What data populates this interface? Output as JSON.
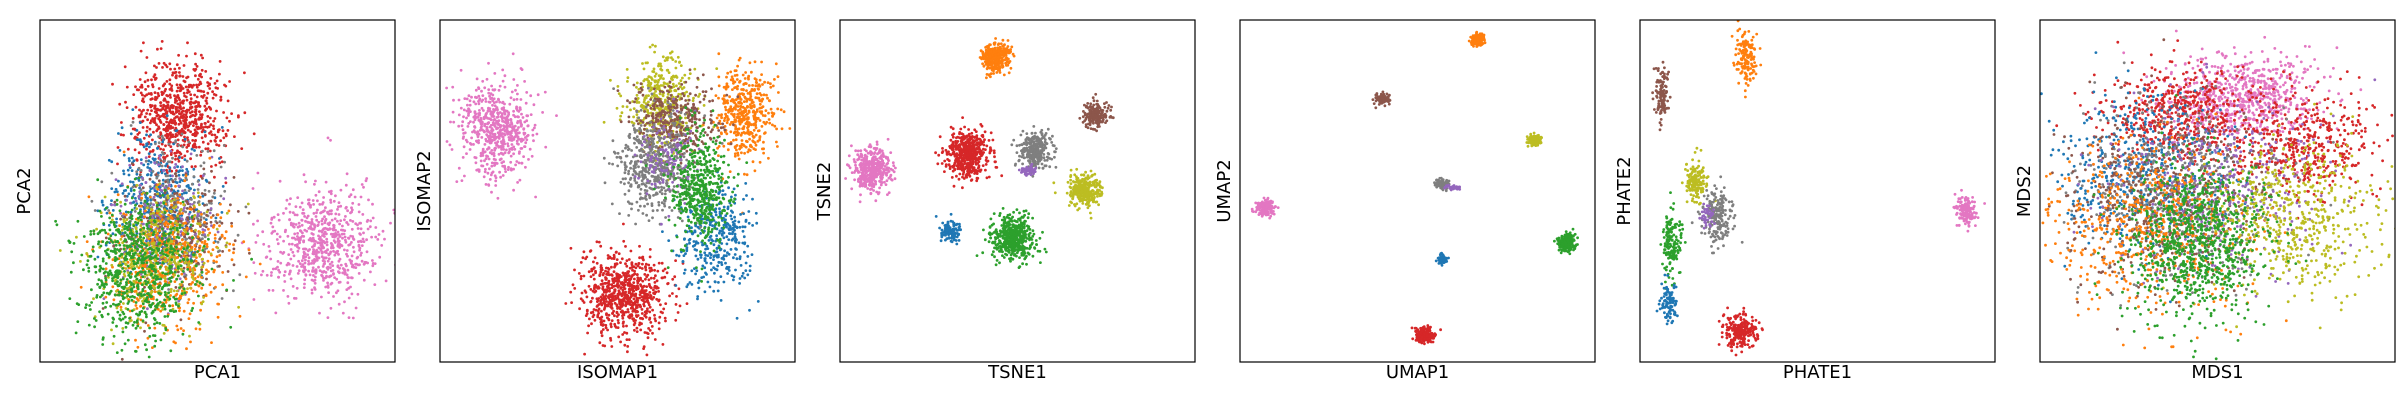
{
  "palette": {
    "blue": "#1f77b4",
    "orange": "#ff7f0e",
    "green": "#2ca02c",
    "red": "#d62728",
    "purple": "#9467bd",
    "brown": "#8c564b",
    "pink": "#e377c2",
    "gray": "#7f7f7f",
    "olive": "#bcbd22"
  },
  "chart_data": [
    {
      "type": "scatter",
      "xlabel": "PCA1",
      "ylabel": "PCA2",
      "xlim": [
        0,
        100
      ],
      "ylim": [
        0,
        100
      ],
      "ticks": "none",
      "clusters": [
        {
          "color": "red",
          "cx": 39,
          "cy": 72,
          "sx": 6.5,
          "sy": 7.5,
          "n": 700
        },
        {
          "color": "pink",
          "cx": 80,
          "cy": 35,
          "sx": 8,
          "sy": 8,
          "n": 650
        },
        {
          "color": "blue",
          "cx": 33,
          "cy": 46,
          "sx": 7,
          "sy": 10,
          "n": 450
        },
        {
          "color": "gray",
          "cx": 38,
          "cy": 42,
          "sx": 8,
          "sy": 10,
          "n": 300
        },
        {
          "color": "purple",
          "cx": 35,
          "cy": 40,
          "sx": 7,
          "sy": 9,
          "n": 200
        },
        {
          "color": "brown",
          "cx": 38,
          "cy": 37,
          "sx": 8,
          "sy": 9,
          "n": 250
        },
        {
          "color": "orange",
          "cx": 36,
          "cy": 30,
          "sx": 9,
          "sy": 10,
          "n": 500
        },
        {
          "color": "olive",
          "cx": 33,
          "cy": 31,
          "sx": 8,
          "sy": 9,
          "n": 400
        },
        {
          "color": "green",
          "cx": 28,
          "cy": 27,
          "sx": 8,
          "sy": 10,
          "n": 700
        }
      ]
    },
    {
      "type": "scatter",
      "xlabel": "ISOMAP1",
      "ylabel": "ISOMAP2",
      "xlim": [
        0,
        100
      ],
      "ylim": [
        0,
        100
      ],
      "ticks": "none",
      "clusters": [
        {
          "color": "pink",
          "cx": 16,
          "cy": 68,
          "sx": 5,
          "sy": 7,
          "n": 600
        },
        {
          "color": "red",
          "cx": 52,
          "cy": 20,
          "sx": 6,
          "sy": 6,
          "n": 750
        },
        {
          "color": "orange",
          "cx": 86,
          "cy": 73,
          "sx": 4,
          "sy": 7,
          "n": 450
        },
        {
          "color": "blue",
          "cx": 78,
          "cy": 36,
          "sx": 5,
          "sy": 8,
          "n": 350
        },
        {
          "color": "olive",
          "cx": 62,
          "cy": 75,
          "sx": 5,
          "sy": 7,
          "n": 400
        },
        {
          "color": "brown",
          "cx": 66,
          "cy": 71,
          "sx": 6,
          "sy": 5,
          "n": 350
        },
        {
          "color": "gray",
          "cx": 60,
          "cy": 58,
          "sx": 5,
          "sy": 7,
          "n": 500
        },
        {
          "color": "purple",
          "cx": 65,
          "cy": 60,
          "sx": 4,
          "sy": 6,
          "n": 120
        },
        {
          "color": "green",
          "cx": 73,
          "cy": 50,
          "sx": 4,
          "sy": 8,
          "n": 500
        }
      ]
    },
    {
      "type": "scatter",
      "xlabel": "TSNE1",
      "ylabel": "TSNE2",
      "xlim": [
        0,
        100
      ],
      "ylim": [
        0,
        100
      ],
      "ticks": "none",
      "clusters": [
        {
          "color": "orange",
          "cx": 44,
          "cy": 89,
          "sx": 2,
          "sy": 2.2,
          "n": 300
        },
        {
          "color": "brown",
          "cx": 72,
          "cy": 72,
          "sx": 1.8,
          "sy": 1.8,
          "n": 200
        },
        {
          "color": "pink",
          "cx": 9,
          "cy": 56,
          "sx": 2.5,
          "sy": 3,
          "n": 400
        },
        {
          "color": "red",
          "cx": 36,
          "cy": 61,
          "sx": 3,
          "sy": 3.3,
          "n": 500
        },
        {
          "color": "gray",
          "cx": 55,
          "cy": 62,
          "sx": 2.2,
          "sy": 2.5,
          "n": 300
        },
        {
          "color": "purple",
          "cx": 53,
          "cy": 56,
          "sx": 1.2,
          "sy": 0.8,
          "n": 40
        },
        {
          "color": "olive",
          "cx": 69,
          "cy": 50,
          "sx": 2.2,
          "sy": 2.4,
          "n": 300
        },
        {
          "color": "blue",
          "cx": 31,
          "cy": 38,
          "sx": 1.3,
          "sy": 1.6,
          "n": 120
        },
        {
          "color": "green",
          "cx": 49,
          "cy": 36,
          "sx": 3,
          "sy": 3.2,
          "n": 500
        }
      ]
    },
    {
      "type": "scatter",
      "xlabel": "UMAP1",
      "ylabel": "UMAP2",
      "xlim": [
        0,
        100
      ],
      "ylim": [
        0,
        100
      ],
      "ticks": "none",
      "clusters": [
        {
          "color": "orange",
          "cx": 67,
          "cy": 94,
          "sx": 1,
          "sy": 0.9,
          "n": 120
        },
        {
          "color": "brown",
          "cx": 40,
          "cy": 77,
          "sx": 0.9,
          "sy": 0.8,
          "n": 100
        },
        {
          "color": "olive",
          "cx": 83,
          "cy": 65,
          "sx": 1,
          "sy": 1,
          "n": 120
        },
        {
          "color": "gray",
          "cx": 57,
          "cy": 52,
          "sx": 1,
          "sy": 0.7,
          "n": 100
        },
        {
          "color": "purple",
          "cx": 60,
          "cy": 51,
          "sx": 1.2,
          "sy": 0.3,
          "n": 40
        },
        {
          "color": "pink",
          "cx": 7,
          "cy": 45,
          "sx": 1.2,
          "sy": 1.2,
          "n": 150
        },
        {
          "color": "green",
          "cx": 92,
          "cy": 35,
          "sx": 1.4,
          "sy": 1.3,
          "n": 200
        },
        {
          "color": "blue",
          "cx": 57,
          "cy": 30,
          "sx": 0.6,
          "sy": 0.8,
          "n": 60
        },
        {
          "color": "red",
          "cx": 52,
          "cy": 8,
          "sx": 1.4,
          "sy": 1.1,
          "n": 200
        }
      ]
    },
    {
      "type": "scatter",
      "xlabel": "PHATE1",
      "ylabel": "PHATE2",
      "xlim": [
        0,
        100
      ],
      "ylim": [
        0,
        100
      ],
      "ticks": "none",
      "clusters": [
        {
          "color": "orange",
          "cx": 30,
          "cy": 89,
          "sx": 1.3,
          "sy": 4,
          "n": 150
        },
        {
          "color": "brown",
          "cx": 6,
          "cy": 78,
          "sx": 1,
          "sy": 4,
          "n": 120
        },
        {
          "color": "olive",
          "cx": 16,
          "cy": 53,
          "sx": 1.5,
          "sy": 3,
          "n": 150
        },
        {
          "color": "gray",
          "cx": 22,
          "cy": 42,
          "sx": 2,
          "sy": 4,
          "n": 200
        },
        {
          "color": "purple",
          "cx": 19,
          "cy": 43,
          "sx": 1,
          "sy": 2,
          "n": 40
        },
        {
          "color": "green",
          "cx": 9,
          "cy": 35,
          "sx": 1.5,
          "sy": 5,
          "n": 150
        },
        {
          "color": "blue",
          "cx": 8,
          "cy": 17,
          "sx": 1.2,
          "sy": 3,
          "n": 100
        },
        {
          "color": "red",
          "cx": 28,
          "cy": 9,
          "sx": 2.5,
          "sy": 2.5,
          "n": 250
        },
        {
          "color": "pink",
          "cx": 92,
          "cy": 44,
          "sx": 1.5,
          "sy": 2.5,
          "n": 150
        }
      ]
    },
    {
      "type": "scatter",
      "xlabel": "MDS1",
      "ylabel": "MDS2",
      "xlim": [
        0,
        100
      ],
      "ylim": [
        0,
        100
      ],
      "ticks": "none",
      "clusters": [
        {
          "color": "pink",
          "cx": 57,
          "cy": 78,
          "sx": 10,
          "sy": 6,
          "n": 700
        },
        {
          "color": "red",
          "cx": 40,
          "cy": 72,
          "sx": 11,
          "sy": 7,
          "n": 550
        },
        {
          "color": "red",
          "cx": 75,
          "cy": 63,
          "sx": 10,
          "sy": 8,
          "n": 450
        },
        {
          "color": "blue",
          "cx": 28,
          "cy": 55,
          "sx": 12,
          "sy": 12,
          "n": 500
        },
        {
          "color": "gray",
          "cx": 38,
          "cy": 50,
          "sx": 14,
          "sy": 13,
          "n": 500
        },
        {
          "color": "brown",
          "cx": 35,
          "cy": 48,
          "sx": 14,
          "sy": 13,
          "n": 500
        },
        {
          "color": "purple",
          "cx": 50,
          "cy": 50,
          "sx": 14,
          "sy": 13,
          "n": 400
        },
        {
          "color": "orange",
          "cx": 30,
          "cy": 40,
          "sx": 14,
          "sy": 13,
          "n": 550
        },
        {
          "color": "olive",
          "cx": 72,
          "cy": 42,
          "sx": 11,
          "sy": 11,
          "n": 550
        },
        {
          "color": "green",
          "cx": 45,
          "cy": 35,
          "sx": 10,
          "sy": 11,
          "n": 900
        }
      ]
    }
  ]
}
